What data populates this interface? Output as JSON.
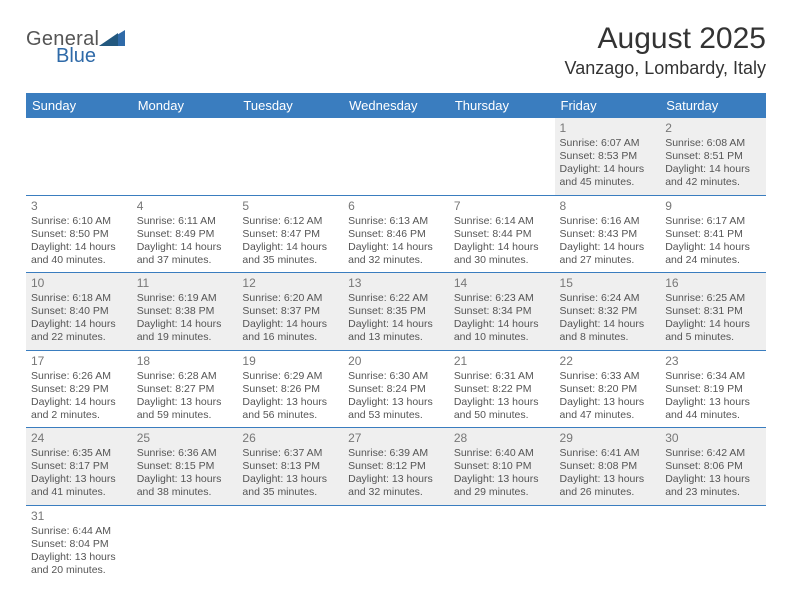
{
  "brand": {
    "general": "General",
    "blue": "Blue"
  },
  "header": {
    "title": "August 2025",
    "location": "Vanzago, Lombardy, Italy"
  },
  "colors": {
    "header_bg": "#3a7dbf",
    "header_text": "#ffffff",
    "row_alt_bg": "#efefef",
    "divider": "#3a7dbf",
    "body_text": "#555555",
    "logo_blue": "#2f6aa8"
  },
  "typography": {
    "title_fontsize": 30,
    "location_fontsize": 18,
    "weekday_fontsize": 13,
    "cell_fontsize": 10.5
  },
  "weekdays": [
    "Sunday",
    "Monday",
    "Tuesday",
    "Wednesday",
    "Thursday",
    "Friday",
    "Saturday"
  ],
  "first_weekday_index": 5,
  "days": [
    {
      "n": 1,
      "sunrise": "6:07 AM",
      "sunset": "8:53 PM",
      "daylight": "14 hours and 45 minutes."
    },
    {
      "n": 2,
      "sunrise": "6:08 AM",
      "sunset": "8:51 PM",
      "daylight": "14 hours and 42 minutes."
    },
    {
      "n": 3,
      "sunrise": "6:10 AM",
      "sunset": "8:50 PM",
      "daylight": "14 hours and 40 minutes."
    },
    {
      "n": 4,
      "sunrise": "6:11 AM",
      "sunset": "8:49 PM",
      "daylight": "14 hours and 37 minutes."
    },
    {
      "n": 5,
      "sunrise": "6:12 AM",
      "sunset": "8:47 PM",
      "daylight": "14 hours and 35 minutes."
    },
    {
      "n": 6,
      "sunrise": "6:13 AM",
      "sunset": "8:46 PM",
      "daylight": "14 hours and 32 minutes."
    },
    {
      "n": 7,
      "sunrise": "6:14 AM",
      "sunset": "8:44 PM",
      "daylight": "14 hours and 30 minutes."
    },
    {
      "n": 8,
      "sunrise": "6:16 AM",
      "sunset": "8:43 PM",
      "daylight": "14 hours and 27 minutes."
    },
    {
      "n": 9,
      "sunrise": "6:17 AM",
      "sunset": "8:41 PM",
      "daylight": "14 hours and 24 minutes."
    },
    {
      "n": 10,
      "sunrise": "6:18 AM",
      "sunset": "8:40 PM",
      "daylight": "14 hours and 22 minutes."
    },
    {
      "n": 11,
      "sunrise": "6:19 AM",
      "sunset": "8:38 PM",
      "daylight": "14 hours and 19 minutes."
    },
    {
      "n": 12,
      "sunrise": "6:20 AM",
      "sunset": "8:37 PM",
      "daylight": "14 hours and 16 minutes."
    },
    {
      "n": 13,
      "sunrise": "6:22 AM",
      "sunset": "8:35 PM",
      "daylight": "14 hours and 13 minutes."
    },
    {
      "n": 14,
      "sunrise": "6:23 AM",
      "sunset": "8:34 PM",
      "daylight": "14 hours and 10 minutes."
    },
    {
      "n": 15,
      "sunrise": "6:24 AM",
      "sunset": "8:32 PM",
      "daylight": "14 hours and 8 minutes."
    },
    {
      "n": 16,
      "sunrise": "6:25 AM",
      "sunset": "8:31 PM",
      "daylight": "14 hours and 5 minutes."
    },
    {
      "n": 17,
      "sunrise": "6:26 AM",
      "sunset": "8:29 PM",
      "daylight": "14 hours and 2 minutes."
    },
    {
      "n": 18,
      "sunrise": "6:28 AM",
      "sunset": "8:27 PM",
      "daylight": "13 hours and 59 minutes."
    },
    {
      "n": 19,
      "sunrise": "6:29 AM",
      "sunset": "8:26 PM",
      "daylight": "13 hours and 56 minutes."
    },
    {
      "n": 20,
      "sunrise": "6:30 AM",
      "sunset": "8:24 PM",
      "daylight": "13 hours and 53 minutes."
    },
    {
      "n": 21,
      "sunrise": "6:31 AM",
      "sunset": "8:22 PM",
      "daylight": "13 hours and 50 minutes."
    },
    {
      "n": 22,
      "sunrise": "6:33 AM",
      "sunset": "8:20 PM",
      "daylight": "13 hours and 47 minutes."
    },
    {
      "n": 23,
      "sunrise": "6:34 AM",
      "sunset": "8:19 PM",
      "daylight": "13 hours and 44 minutes."
    },
    {
      "n": 24,
      "sunrise": "6:35 AM",
      "sunset": "8:17 PM",
      "daylight": "13 hours and 41 minutes."
    },
    {
      "n": 25,
      "sunrise": "6:36 AM",
      "sunset": "8:15 PM",
      "daylight": "13 hours and 38 minutes."
    },
    {
      "n": 26,
      "sunrise": "6:37 AM",
      "sunset": "8:13 PM",
      "daylight": "13 hours and 35 minutes."
    },
    {
      "n": 27,
      "sunrise": "6:39 AM",
      "sunset": "8:12 PM",
      "daylight": "13 hours and 32 minutes."
    },
    {
      "n": 28,
      "sunrise": "6:40 AM",
      "sunset": "8:10 PM",
      "daylight": "13 hours and 29 minutes."
    },
    {
      "n": 29,
      "sunrise": "6:41 AM",
      "sunset": "8:08 PM",
      "daylight": "13 hours and 26 minutes."
    },
    {
      "n": 30,
      "sunrise": "6:42 AM",
      "sunset": "8:06 PM",
      "daylight": "13 hours and 23 minutes."
    },
    {
      "n": 31,
      "sunrise": "6:44 AM",
      "sunset": "8:04 PM",
      "daylight": "13 hours and 20 minutes."
    }
  ],
  "labels": {
    "sunrise": "Sunrise: ",
    "sunset": "Sunset: ",
    "daylight": "Daylight: "
  }
}
